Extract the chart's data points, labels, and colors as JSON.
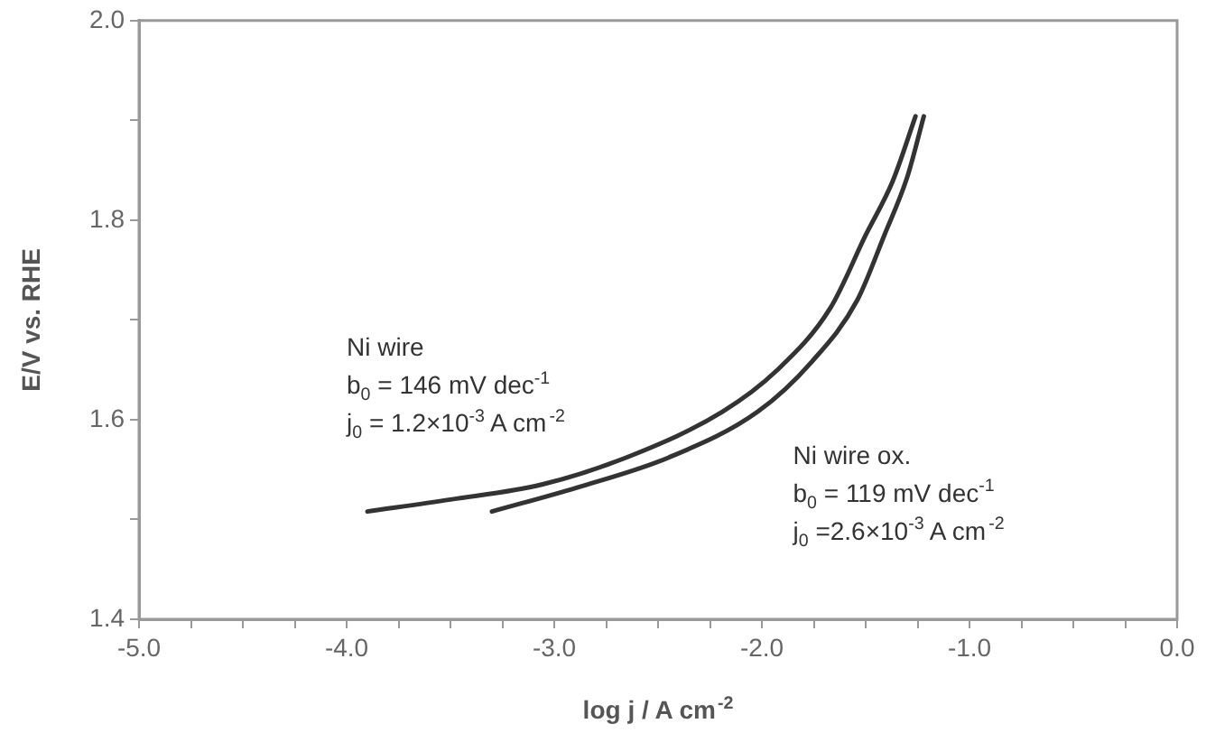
{
  "chart_data": {
    "type": "line",
    "xlabel": "log j / A cm$^{-2}$",
    "ylabel": "E/V vs. RHE",
    "xlim": [
      -5,
      0
    ],
    "xticks": [
      {
        "value": -5,
        "label": "-5.0"
      },
      {
        "value": -4.75,
        "label": null
      },
      {
        "value": -4.5,
        "label": null
      },
      {
        "value": -4.25,
        "label": null
      },
      {
        "value": -4,
        "label": "-4.0"
      },
      {
        "value": -3.75,
        "label": null
      },
      {
        "value": -3.5,
        "label": null
      },
      {
        "value": -3.25,
        "label": null
      },
      {
        "value": -3,
        "label": "-3.0"
      },
      {
        "value": -2.75,
        "label": null
      },
      {
        "value": -2.5,
        "label": null
      },
      {
        "value": -2.25,
        "label": null
      },
      {
        "value": -2,
        "label": "-2.0"
      },
      {
        "value": -1.75,
        "label": null
      },
      {
        "value": -1.5,
        "label": null
      },
      {
        "value": -1.25,
        "label": null
      },
      {
        "value": -1,
        "label": "-1.0"
      },
      {
        "value": -0.75,
        "label": null
      },
      {
        "value": -0.5,
        "label": null
      },
      {
        "value": -0.25,
        "label": null
      },
      {
        "value": 0,
        "label": "0.0"
      }
    ],
    "ylim": [
      1.4,
      2.0
    ],
    "yticks": [
      {
        "value": 1.4,
        "label": "1.4"
      },
      {
        "value": 1.5,
        "label": null
      },
      {
        "value": 1.6,
        "label": "1.6"
      },
      {
        "value": 1.7,
        "label": null
      },
      {
        "value": 1.8,
        "label": "1.8"
      },
      {
        "value": 1.9,
        "label": null
      },
      {
        "value": 2.0,
        "label": "2.0"
      }
    ],
    "grid": false,
    "legend": false,
    "series": [
      {
        "color": "#333333",
        "x": [
          -3.9,
          -3.5,
          -3.06,
          -2.63,
          -2.19,
          -1.93,
          -1.67,
          -1.5,
          -1.37,
          -1.26
        ],
        "values": [
          1.508,
          1.52,
          1.535,
          1.564,
          1.608,
          1.649,
          1.712,
          1.785,
          1.839,
          1.904
        ]
      },
      {
        "color": "#333333",
        "x": [
          -3.3,
          -2.89,
          -2.45,
          -2.02,
          -1.76,
          -1.54,
          -1.41,
          -1.3,
          -1.22
        ],
        "values": [
          1.508,
          1.532,
          1.562,
          1.608,
          1.658,
          1.72,
          1.785,
          1.843,
          1.904
        ]
      }
    ],
    "annotations": [
      "Ni wire",
      "b$_{0}$ = 146 mV dec$^{-1}$",
      "j$_{0}$ = 1.2×10$^{-3}$ A cm$^{-2}$",
      "Ni wire ox.",
      "b$_{0}$ = 119 mV dec$^{-1}$",
      "j$_{0}$ =2.6×10$^{-3}$ A cm$^{-2}$"
    ]
  }
}
